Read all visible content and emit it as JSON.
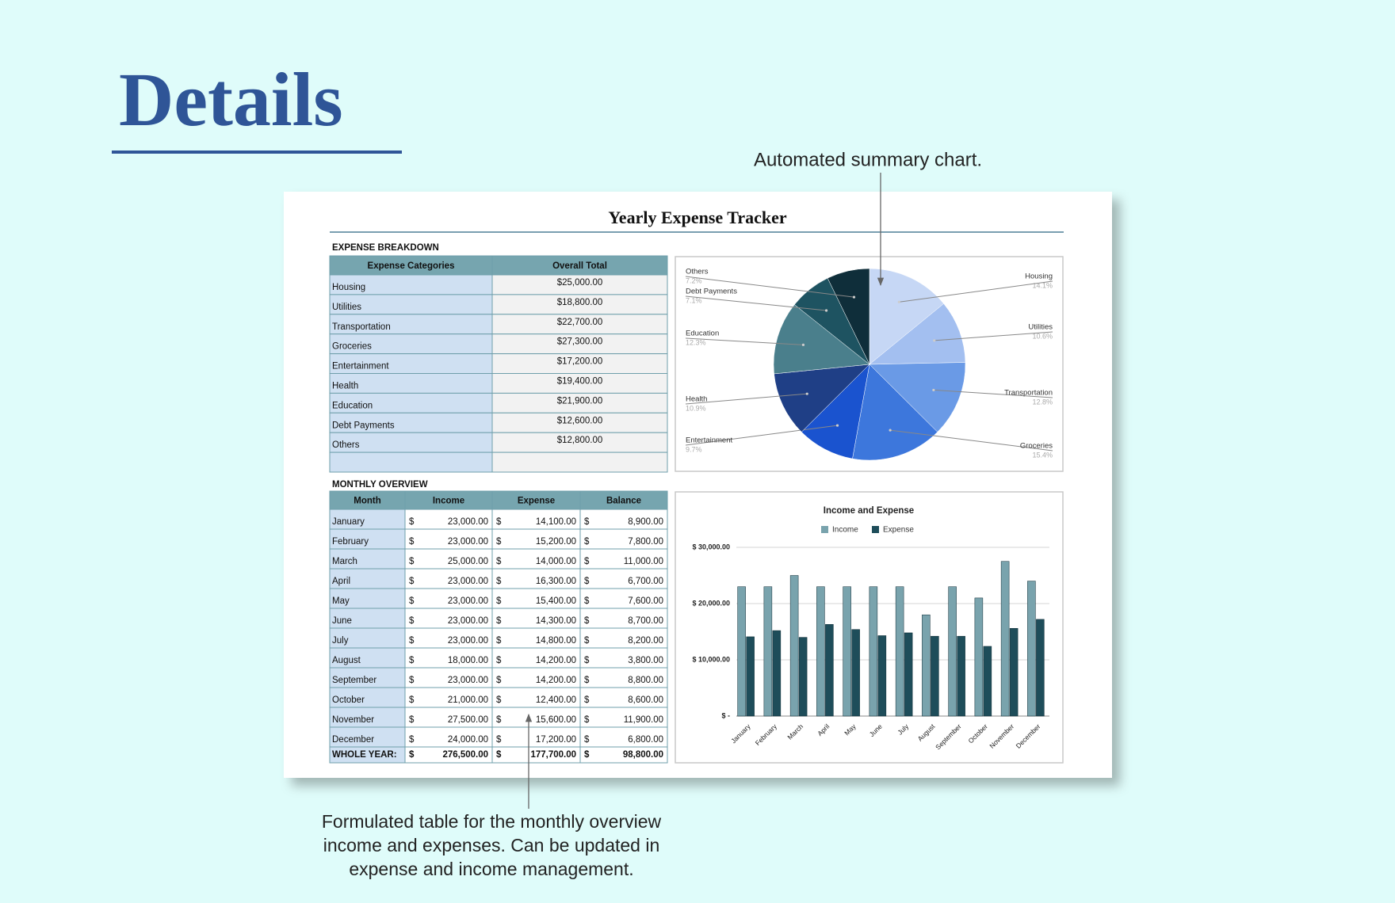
{
  "header": {
    "title": "Details"
  },
  "annotations": {
    "chart_note": "Automated summary chart.",
    "table_note": [
      "Formulated table for the monthly overview",
      "income and expenses. Can be updated in",
      "expense and income management."
    ]
  },
  "tracker": {
    "title": "Yearly Expense Tracker",
    "breakdown": {
      "heading": "EXPENSE BREAKDOWN",
      "columns": [
        "Expense Categories",
        "Overall Total"
      ],
      "rows": [
        [
          "Housing",
          "$25,000.00"
        ],
        [
          "Utilities",
          "$18,800.00"
        ],
        [
          "Transportation",
          "$22,700.00"
        ],
        [
          "Groceries",
          "$27,300.00"
        ],
        [
          "Entertainment",
          "$17,200.00"
        ],
        [
          "Health",
          "$19,400.00"
        ],
        [
          "Education",
          "$21,900.00"
        ],
        [
          "Debt Payments",
          "$12,600.00"
        ],
        [
          "Others",
          "$12,800.00"
        ]
      ]
    },
    "monthly": {
      "heading": "MONTHLY OVERVIEW",
      "columns": [
        "Month",
        "Income",
        "Expense",
        "Balance"
      ],
      "currency": "$",
      "rows": [
        [
          "January",
          "23,000.00",
          "14,100.00",
          "8,900.00"
        ],
        [
          "February",
          "23,000.00",
          "15,200.00",
          "7,800.00"
        ],
        [
          "March",
          "25,000.00",
          "14,000.00",
          "11,000.00"
        ],
        [
          "April",
          "23,000.00",
          "16,300.00",
          "6,700.00"
        ],
        [
          "May",
          "23,000.00",
          "15,400.00",
          "7,600.00"
        ],
        [
          "June",
          "23,000.00",
          "14,300.00",
          "8,700.00"
        ],
        [
          "July",
          "23,000.00",
          "14,800.00",
          "8,200.00"
        ],
        [
          "August",
          "18,000.00",
          "14,200.00",
          "3,800.00"
        ],
        [
          "September",
          "23,000.00",
          "14,200.00",
          "8,800.00"
        ],
        [
          "October",
          "21,000.00",
          "12,400.00",
          "8,600.00"
        ],
        [
          "November",
          "27,500.00",
          "15,600.00",
          "11,900.00"
        ],
        [
          "December",
          "24,000.00",
          "17,200.00",
          "6,800.00"
        ]
      ],
      "total": [
        "WHOLE YEAR:",
        "276,500.00",
        "177,700.00",
        "98,800.00"
      ]
    }
  },
  "chart_data": [
    {
      "type": "pie",
      "categories": [
        "Housing",
        "Utilities",
        "Transportation",
        "Groceries",
        "Entertainment",
        "Health",
        "Education",
        "Debt Payments",
        "Others"
      ],
      "values": [
        14.1,
        10.6,
        12.8,
        15.4,
        9.7,
        10.9,
        12.3,
        7.1,
        7.2
      ],
      "value_labels": [
        "14.1%",
        "10.6%",
        "12.8%",
        "15.4%",
        "9.7%",
        "10.9%",
        "12.3%",
        "7.1%",
        "7.2%"
      ],
      "colors": [
        "#c6d7f5",
        "#a3bff0",
        "#6a9ae6",
        "#3d77dc",
        "#1a53cf",
        "#1f3f86",
        "#4a7f8c",
        "#1e5361",
        "#0f2e3a"
      ]
    },
    {
      "type": "bar",
      "title": "Income and Expense",
      "categories": [
        "January",
        "February",
        "March",
        "April",
        "May",
        "June",
        "July",
        "August",
        "September",
        "October",
        "November",
        "December"
      ],
      "series": [
        {
          "name": "Income",
          "color": "#79a3ad",
          "values": [
            23000,
            23000,
            25000,
            23000,
            23000,
            23000,
            23000,
            18000,
            23000,
            21000,
            27500,
            24000
          ]
        },
        {
          "name": "Expense",
          "color": "#1e4d5a",
          "values": [
            14100,
            15200,
            14000,
            16300,
            15400,
            14300,
            14800,
            14200,
            14200,
            12400,
            15600,
            17200
          ]
        }
      ],
      "ylim": [
        0,
        30000
      ],
      "yticks": [
        {
          "value": 0,
          "label": "$ -"
        },
        {
          "value": 10000,
          "label": "$ 10,000.00"
        },
        {
          "value": 20000,
          "label": "$ 20,000.00"
        },
        {
          "value": 30000,
          "label": "$ 30,000.00"
        }
      ],
      "grid": true,
      "legend": "top"
    }
  ]
}
